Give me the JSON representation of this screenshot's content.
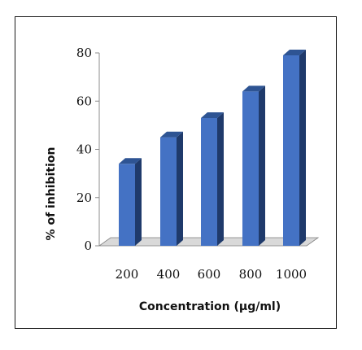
{
  "chart_data": {
    "type": "bar",
    "categories": [
      "200",
      "400",
      "600",
      "800",
      "1000"
    ],
    "values": [
      34,
      45,
      53,
      64,
      79
    ],
    "xlabel": "Concentration (µg/ml)",
    "ylabel": "% of inhibition",
    "ylim": [
      0,
      80
    ],
    "yticks": [
      "0",
      "20",
      "40",
      "60",
      "80"
    ],
    "grid": false,
    "legend": "none",
    "bar_color": "#4472C4",
    "bar_top_color": "#2E5493",
    "bar_side_color": "#1F3A6B",
    "floor_color": "#D9D9D9"
  }
}
